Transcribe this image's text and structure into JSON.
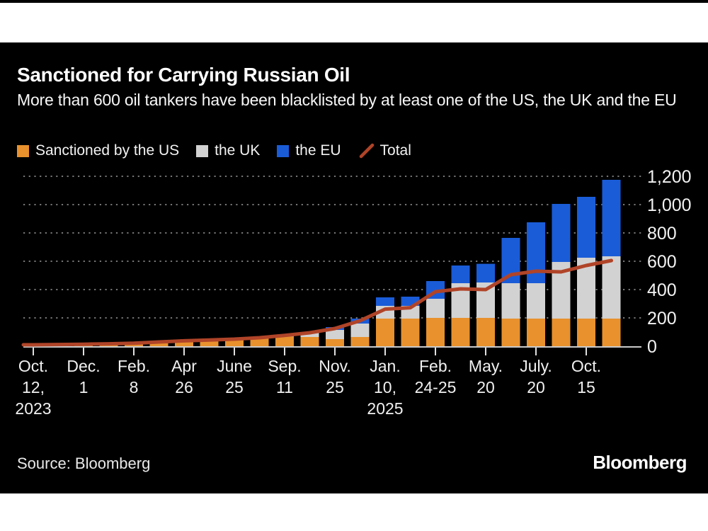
{
  "chart_data": {
    "type": "bar",
    "stacked": true,
    "overlay_line": true,
    "title": "Sanctioned for Carrying Russian Oil",
    "subtitle": "More than 600 oil tankers have been blacklisted by at least one of the US, the UK and the EU",
    "bar_count": 24,
    "categories": [
      [
        "Oct.",
        "12,",
        "2023"
      ],
      [
        "Dec.",
        "1"
      ],
      [
        "Feb.",
        "8"
      ],
      [
        "Apr",
        "26"
      ],
      [
        "June",
        "25"
      ],
      [
        "Sep.",
        "11"
      ],
      [
        "Nov.",
        "25"
      ],
      [
        "Jan.",
        "10,",
        "2025"
      ],
      [
        "Feb.",
        "24-25"
      ],
      [
        "May.",
        "20"
      ],
      [
        "July.",
        "20"
      ],
      [
        "Oct.",
        "15"
      ]
    ],
    "tick_bar_indexes": [
      0,
      2,
      4,
      6,
      8,
      10,
      12,
      14,
      16,
      18,
      20,
      22
    ],
    "series": [
      {
        "name": "Sanctioned by the US",
        "key": "us",
        "values": [
          8,
          10,
          12,
          14,
          18,
          26,
          35,
          40,
          46,
          55,
          68,
          65,
          50,
          65,
          195,
          195,
          200,
          200,
          200,
          195,
          195,
          195,
          195,
          195
        ]
      },
      {
        "name": "the UK",
        "key": "uk",
        "values": [
          0,
          0,
          0,
          0,
          0,
          0,
          0,
          0,
          0,
          3,
          12,
          35,
          65,
          95,
          90,
          90,
          135,
          245,
          250,
          250,
          250,
          400,
          430,
          440
        ]
      },
      {
        "name": "the EU",
        "key": "eu",
        "values": [
          0,
          0,
          0,
          0,
          0,
          0,
          0,
          0,
          0,
          0,
          0,
          0,
          20,
          35,
          60,
          65,
          125,
          125,
          132,
          320,
          430,
          410,
          430,
          540
        ]
      }
    ],
    "line": {
      "name": "Total",
      "values": [
        10,
        12,
        14,
        17,
        21,
        30,
        38,
        44,
        50,
        60,
        76,
        95,
        125,
        180,
        262,
        272,
        385,
        405,
        400,
        505,
        530,
        525,
        570,
        605
      ]
    },
    "y_ticks": [
      {
        "label": "0",
        "value": 0
      },
      {
        "label": "200",
        "value": 200
      },
      {
        "label": "400",
        "value": 400
      },
      {
        "label": "600",
        "value": 600
      },
      {
        "label": "800",
        "value": 800
      },
      {
        "label": "1,000",
        "value": 1000
      },
      {
        "label": "1,200",
        "value": 1200
      }
    ],
    "ylim": [
      0,
      1200
    ],
    "grid": "dotted-horizontal",
    "legend_position": "top-left"
  },
  "legend": {
    "us": "Sanctioned by the US",
    "uk": "the UK",
    "eu": "the EU",
    "total": "Total"
  },
  "footer": {
    "source": "Source: Bloomberg",
    "logo": "Bloomberg"
  },
  "colors": {
    "us": "#E8912D",
    "uk": "#D2D2D2",
    "eu": "#1A5CD8",
    "total_line": "#B04428",
    "grid": "#757575",
    "axis": "#c9c9c9",
    "tick": "#e0e0e0",
    "axis_text": "#f2f2f2",
    "background": "#000000"
  }
}
